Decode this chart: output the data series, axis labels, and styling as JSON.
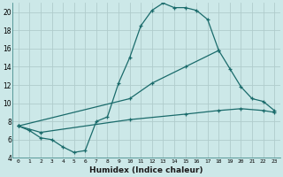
{
  "xlabel": "Humidex (Indice chaleur)",
  "background_color": "#cce8e8",
  "grid_color": "#b0cccc",
  "line_color": "#1a6b6b",
  "xlim": [
    -0.5,
    23.5
  ],
  "ylim": [
    4,
    21
  ],
  "yticks": [
    4,
    6,
    8,
    10,
    12,
    14,
    16,
    18,
    20
  ],
  "xticks": [
    0,
    1,
    2,
    3,
    4,
    5,
    6,
    7,
    8,
    9,
    10,
    11,
    12,
    13,
    14,
    15,
    16,
    17,
    18,
    19,
    20,
    21,
    22,
    23
  ],
  "series": [
    {
      "x": [
        0,
        1,
        2,
        3,
        4,
        5,
        6,
        7,
        8,
        9,
        10,
        11,
        12,
        13,
        14,
        15,
        16,
        17,
        18
      ],
      "y": [
        7.5,
        7.0,
        6.2,
        6.0,
        5.2,
        4.6,
        4.8,
        8.0,
        8.5,
        12.2,
        15.0,
        18.5,
        20.2,
        21.0,
        20.5,
        20.5,
        20.2,
        19.2,
        15.8
      ]
    },
    {
      "x": [
        0,
        10,
        12,
        15,
        18,
        19,
        20,
        21,
        22,
        23
      ],
      "y": [
        7.5,
        10.5,
        12.2,
        14.0,
        15.8,
        13.8,
        11.8,
        10.5,
        10.2,
        9.2
      ]
    },
    {
      "x": [
        0,
        2,
        10,
        15,
        18,
        20,
        22,
        23
      ],
      "y": [
        7.5,
        6.8,
        8.2,
        8.8,
        9.2,
        9.4,
        9.2,
        9.0
      ]
    }
  ]
}
